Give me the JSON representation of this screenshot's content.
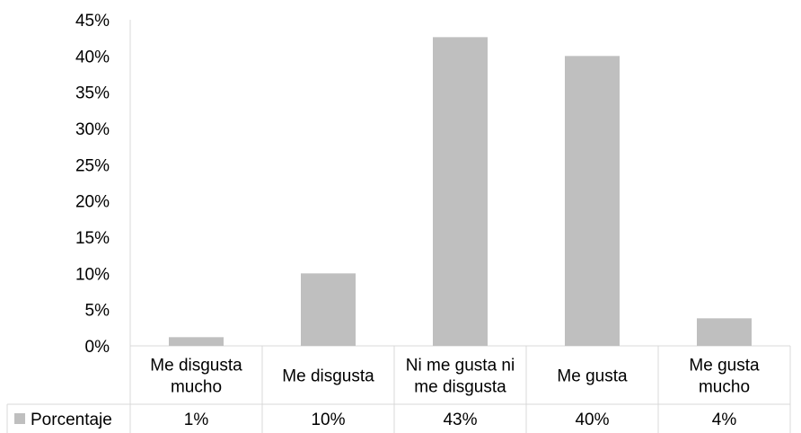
{
  "chart_data": {
    "type": "bar",
    "categories": [
      [
        "Me disgusta",
        "mucho"
      ],
      [
        "Me disgusta"
      ],
      [
        "Ni me gusta ni",
        "me disgusta"
      ],
      [
        "Me gusta"
      ],
      [
        "Me gusta",
        "mucho"
      ]
    ],
    "series": [
      {
        "name": "Porcentaje",
        "values": [
          1.2,
          10.0,
          42.6,
          40.0,
          3.8
        ],
        "labels": [
          "1%",
          "10%",
          "43%",
          "40%",
          "4%"
        ]
      }
    ],
    "yticks": [
      "0%",
      "5%",
      "10%",
      "15%",
      "20%",
      "25%",
      "30%",
      "35%",
      "40%",
      "45%"
    ],
    "ylim": [
      0,
      45
    ],
    "grid": false,
    "data_table": true,
    "colors": {
      "bar": "#bfbfbf",
      "axis": "#d9d9d9"
    }
  }
}
